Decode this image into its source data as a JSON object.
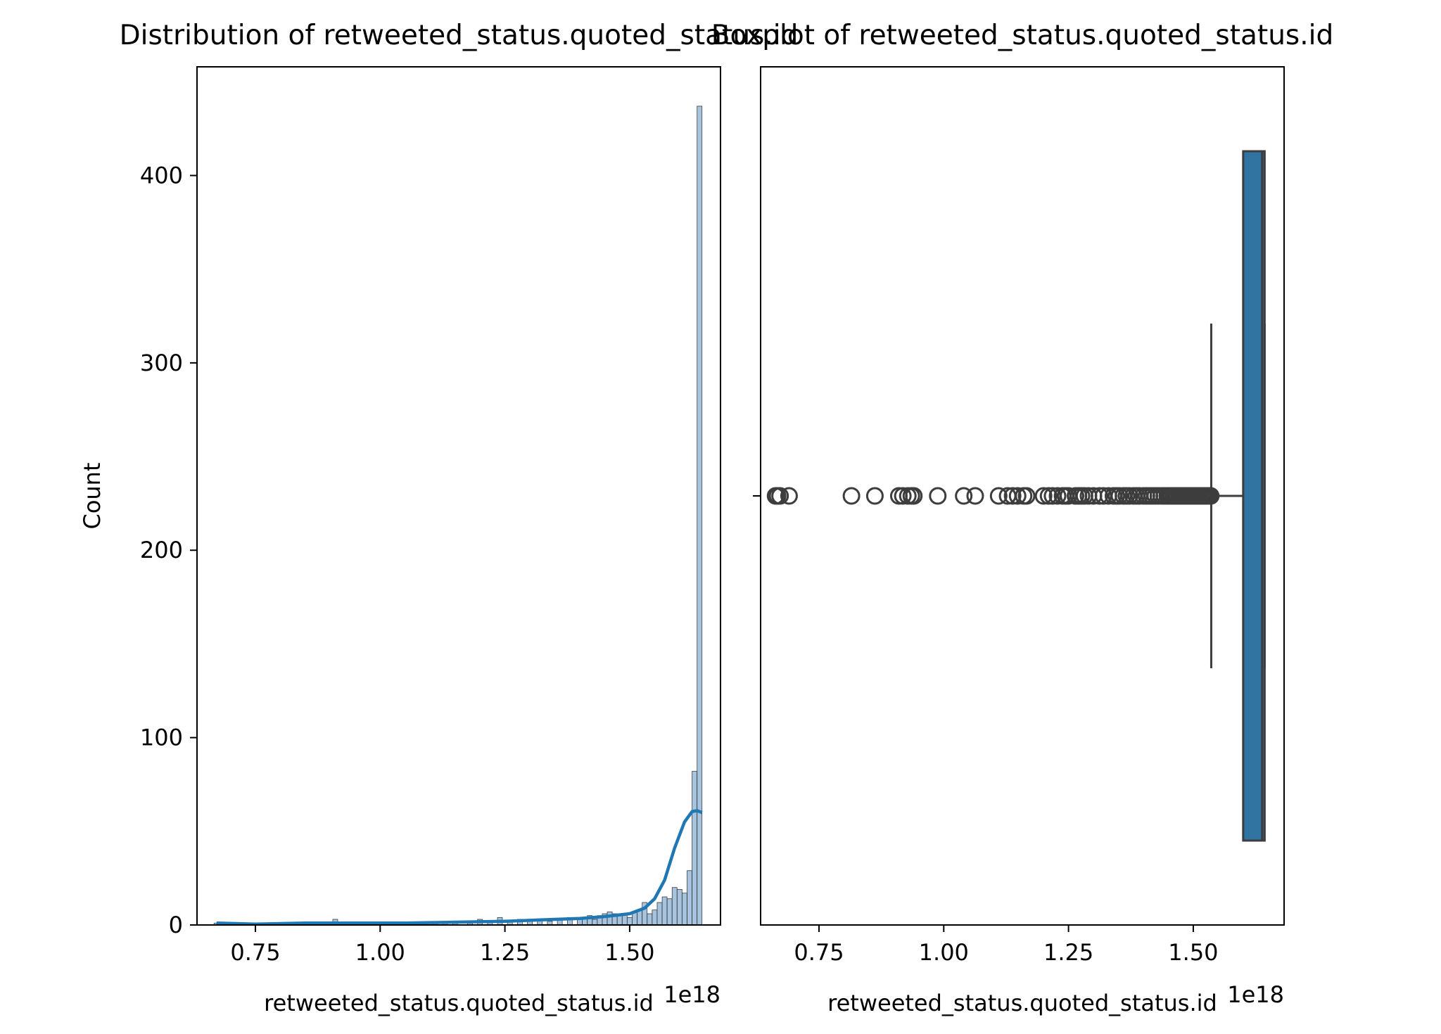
{
  "figure": {
    "background": "#ffffff",
    "bar_color": "#1f77b4",
    "hist_fill": "#a6c4e0",
    "box_fill": "#3274a1",
    "edge_color": "#3d3d3d"
  },
  "chart_data": [
    {
      "type": "bar",
      "subtype": "histogram-with-kde",
      "title": "Distribution of retweeted_status.quoted_status.id",
      "xlabel": "retweeted_status.quoted_status.id",
      "ylabel": "Count",
      "x_offset_label": "1e18",
      "xlim": [
        0.633,
        1.682
      ],
      "ylim": [
        0,
        458
      ],
      "x_ticks": [
        0.75,
        1.0,
        1.25,
        1.5
      ],
      "x_tick_labels": [
        "0.75",
        "1.00",
        "1.25",
        "1.50"
      ],
      "y_ticks": [
        0,
        100,
        200,
        300,
        400
      ],
      "y_tick_labels": [
        "0",
        "100",
        "200",
        "300",
        "400"
      ],
      "bins": [
        {
          "x": 0.672,
          "count": 1
        },
        {
          "x": 0.91,
          "count": 3
        },
        {
          "x": 0.93,
          "count": 1
        },
        {
          "x": 1.11,
          "count": 1
        },
        {
          "x": 1.13,
          "count": 1
        },
        {
          "x": 1.15,
          "count": 1
        },
        {
          "x": 1.18,
          "count": 1
        },
        {
          "x": 1.2,
          "count": 3
        },
        {
          "x": 1.22,
          "count": 2
        },
        {
          "x": 1.24,
          "count": 4
        },
        {
          "x": 1.26,
          "count": 2
        },
        {
          "x": 1.28,
          "count": 3
        },
        {
          "x": 1.3,
          "count": 2
        },
        {
          "x": 1.32,
          "count": 3
        },
        {
          "x": 1.34,
          "count": 2
        },
        {
          "x": 1.36,
          "count": 3
        },
        {
          "x": 1.38,
          "count": 4
        },
        {
          "x": 1.4,
          "count": 3
        },
        {
          "x": 1.41,
          "count": 4
        },
        {
          "x": 1.42,
          "count": 5
        },
        {
          "x": 1.43,
          "count": 3
        },
        {
          "x": 1.44,
          "count": 5
        },
        {
          "x": 1.45,
          "count": 6
        },
        {
          "x": 1.46,
          "count": 7
        },
        {
          "x": 1.47,
          "count": 6
        },
        {
          "x": 1.48,
          "count": 5
        },
        {
          "x": 1.49,
          "count": 6
        },
        {
          "x": 1.5,
          "count": 4
        },
        {
          "x": 1.51,
          "count": 7
        },
        {
          "x": 1.52,
          "count": 8
        },
        {
          "x": 1.53,
          "count": 12
        },
        {
          "x": 1.54,
          "count": 6
        },
        {
          "x": 1.55,
          "count": 8
        },
        {
          "x": 1.56,
          "count": 12
        },
        {
          "x": 1.57,
          "count": 15
        },
        {
          "x": 1.58,
          "count": 14
        },
        {
          "x": 1.59,
          "count": 20
        },
        {
          "x": 1.6,
          "count": 19
        },
        {
          "x": 1.61,
          "count": 17
        },
        {
          "x": 1.62,
          "count": 29
        },
        {
          "x": 1.63,
          "count": 82
        },
        {
          "x": 1.64,
          "count": 437
        }
      ],
      "bin_width": 0.0098,
      "kde": {
        "x": [
          0.672,
          0.75,
          0.85,
          0.95,
          1.05,
          1.15,
          1.25,
          1.35,
          1.4,
          1.45,
          1.5,
          1.53,
          1.55,
          1.57,
          1.59,
          1.61,
          1.625,
          1.635,
          1.645
        ],
        "y": [
          1.0,
          0.5,
          1.0,
          1.0,
          1.0,
          1.5,
          2.0,
          3.0,
          3.5,
          4.5,
          6.0,
          9.0,
          14.0,
          24.0,
          41.0,
          55.0,
          60.5,
          61.0,
          60.0
        ]
      }
    },
    {
      "type": "box",
      "title": "Boxplot of retweeted_status.quoted_status.id",
      "xlabel": "retweeted_status.quoted_status.id",
      "x_offset_label": "1e18",
      "xlim": [
        0.633,
        1.682
      ],
      "x_ticks": [
        0.75,
        1.0,
        1.25,
        1.5
      ],
      "x_tick_labels": [
        "0.75",
        "1.00",
        "1.25",
        "1.50"
      ],
      "box": {
        "whisker_low": 1.536,
        "q1": 1.6,
        "median": 1.638,
        "q3": 1.643,
        "whisker_high": 1.643
      },
      "outliers": [
        0.663,
        0.667,
        0.672,
        0.69,
        0.815,
        0.862,
        0.91,
        0.918,
        0.928,
        0.935,
        0.94,
        0.988,
        1.04,
        1.063,
        1.11,
        1.128,
        1.138,
        1.148,
        1.16,
        1.166,
        1.2,
        1.21,
        1.218,
        1.228,
        1.238,
        1.244,
        1.25,
        1.264,
        1.27,
        1.276,
        1.282,
        1.29,
        1.3,
        1.312,
        1.32,
        1.33,
        1.34,
        1.346,
        1.352,
        1.36,
        1.366,
        1.372,
        1.38,
        1.386,
        1.392,
        1.4,
        1.406,
        1.412,
        1.418,
        1.424,
        1.43,
        1.436,
        1.442,
        1.448,
        1.452,
        1.456,
        1.46,
        1.464,
        1.468,
        1.472,
        1.476,
        1.48,
        1.484,
        1.488,
        1.492,
        1.496,
        1.5,
        1.504,
        1.508,
        1.512,
        1.516,
        1.52,
        1.524,
        1.528,
        1.532,
        1.535
      ]
    }
  ]
}
